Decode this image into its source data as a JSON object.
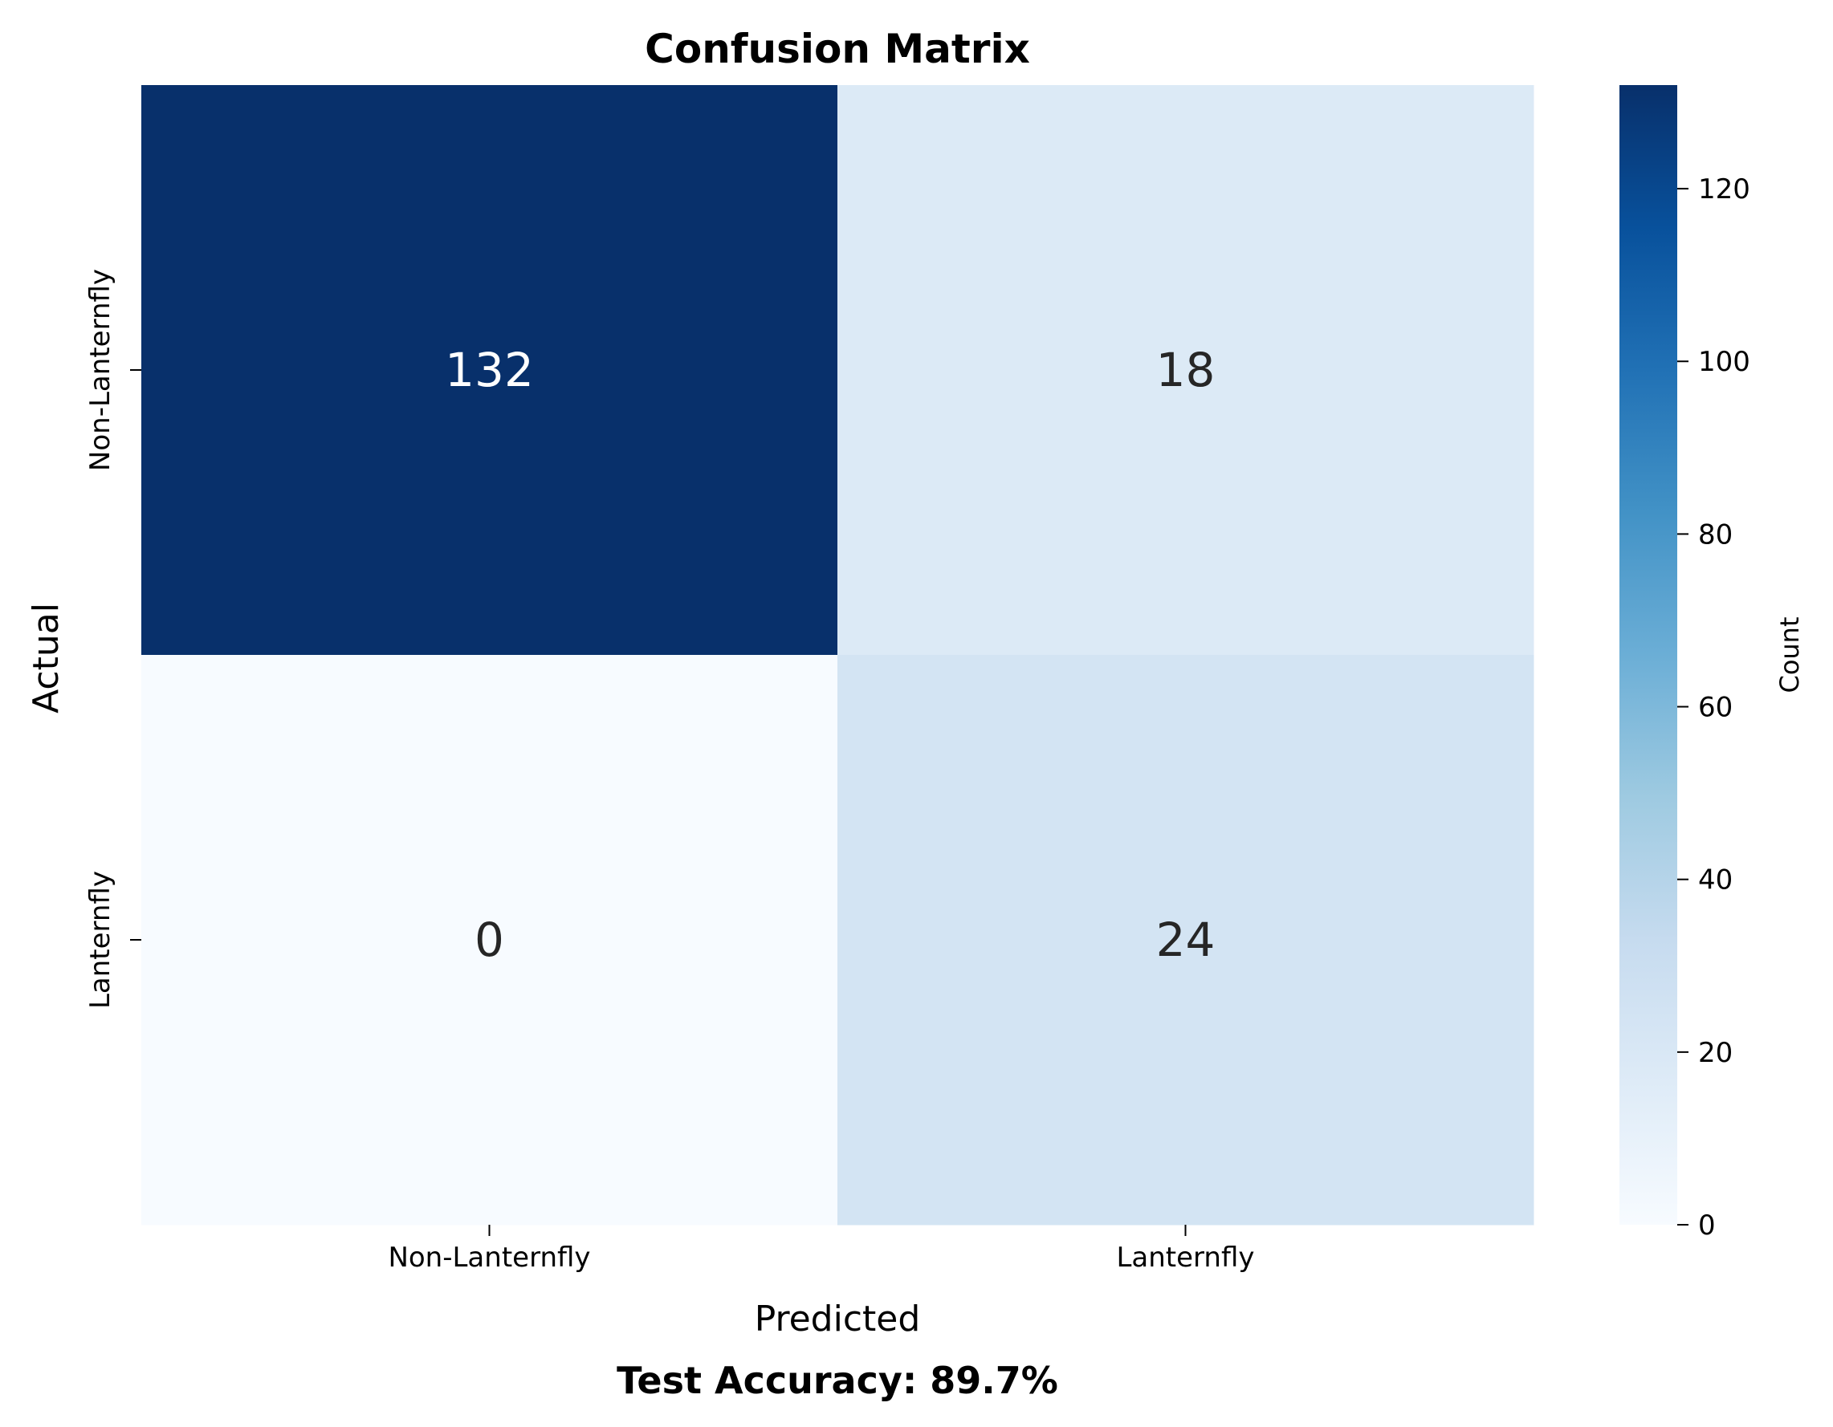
{
  "chart_data": {
    "type": "heatmap",
    "title": "Confusion Matrix",
    "xlabel": "Predicted",
    "ylabel": "Actual",
    "x_categories": [
      "Non-Lanternfly",
      "Lanternfly"
    ],
    "y_categories": [
      "Non-Lanternfly",
      "Lanternfly"
    ],
    "values": [
      [
        132,
        18
      ],
      [
        0,
        24
      ]
    ],
    "colorbar": {
      "label": "Count",
      "range": [
        0,
        132
      ],
      "ticks": [
        0,
        20,
        40,
        60,
        80,
        100,
        120
      ],
      "colormap": "Blues"
    },
    "footer": "Test Accuracy: 89.7%",
    "grid": false,
    "legend": "none"
  },
  "colors": {
    "background": "#ffffff",
    "text": "#000000",
    "annotation_dark_bg": "#ffffff",
    "annotation_light_bg": "#262626"
  }
}
